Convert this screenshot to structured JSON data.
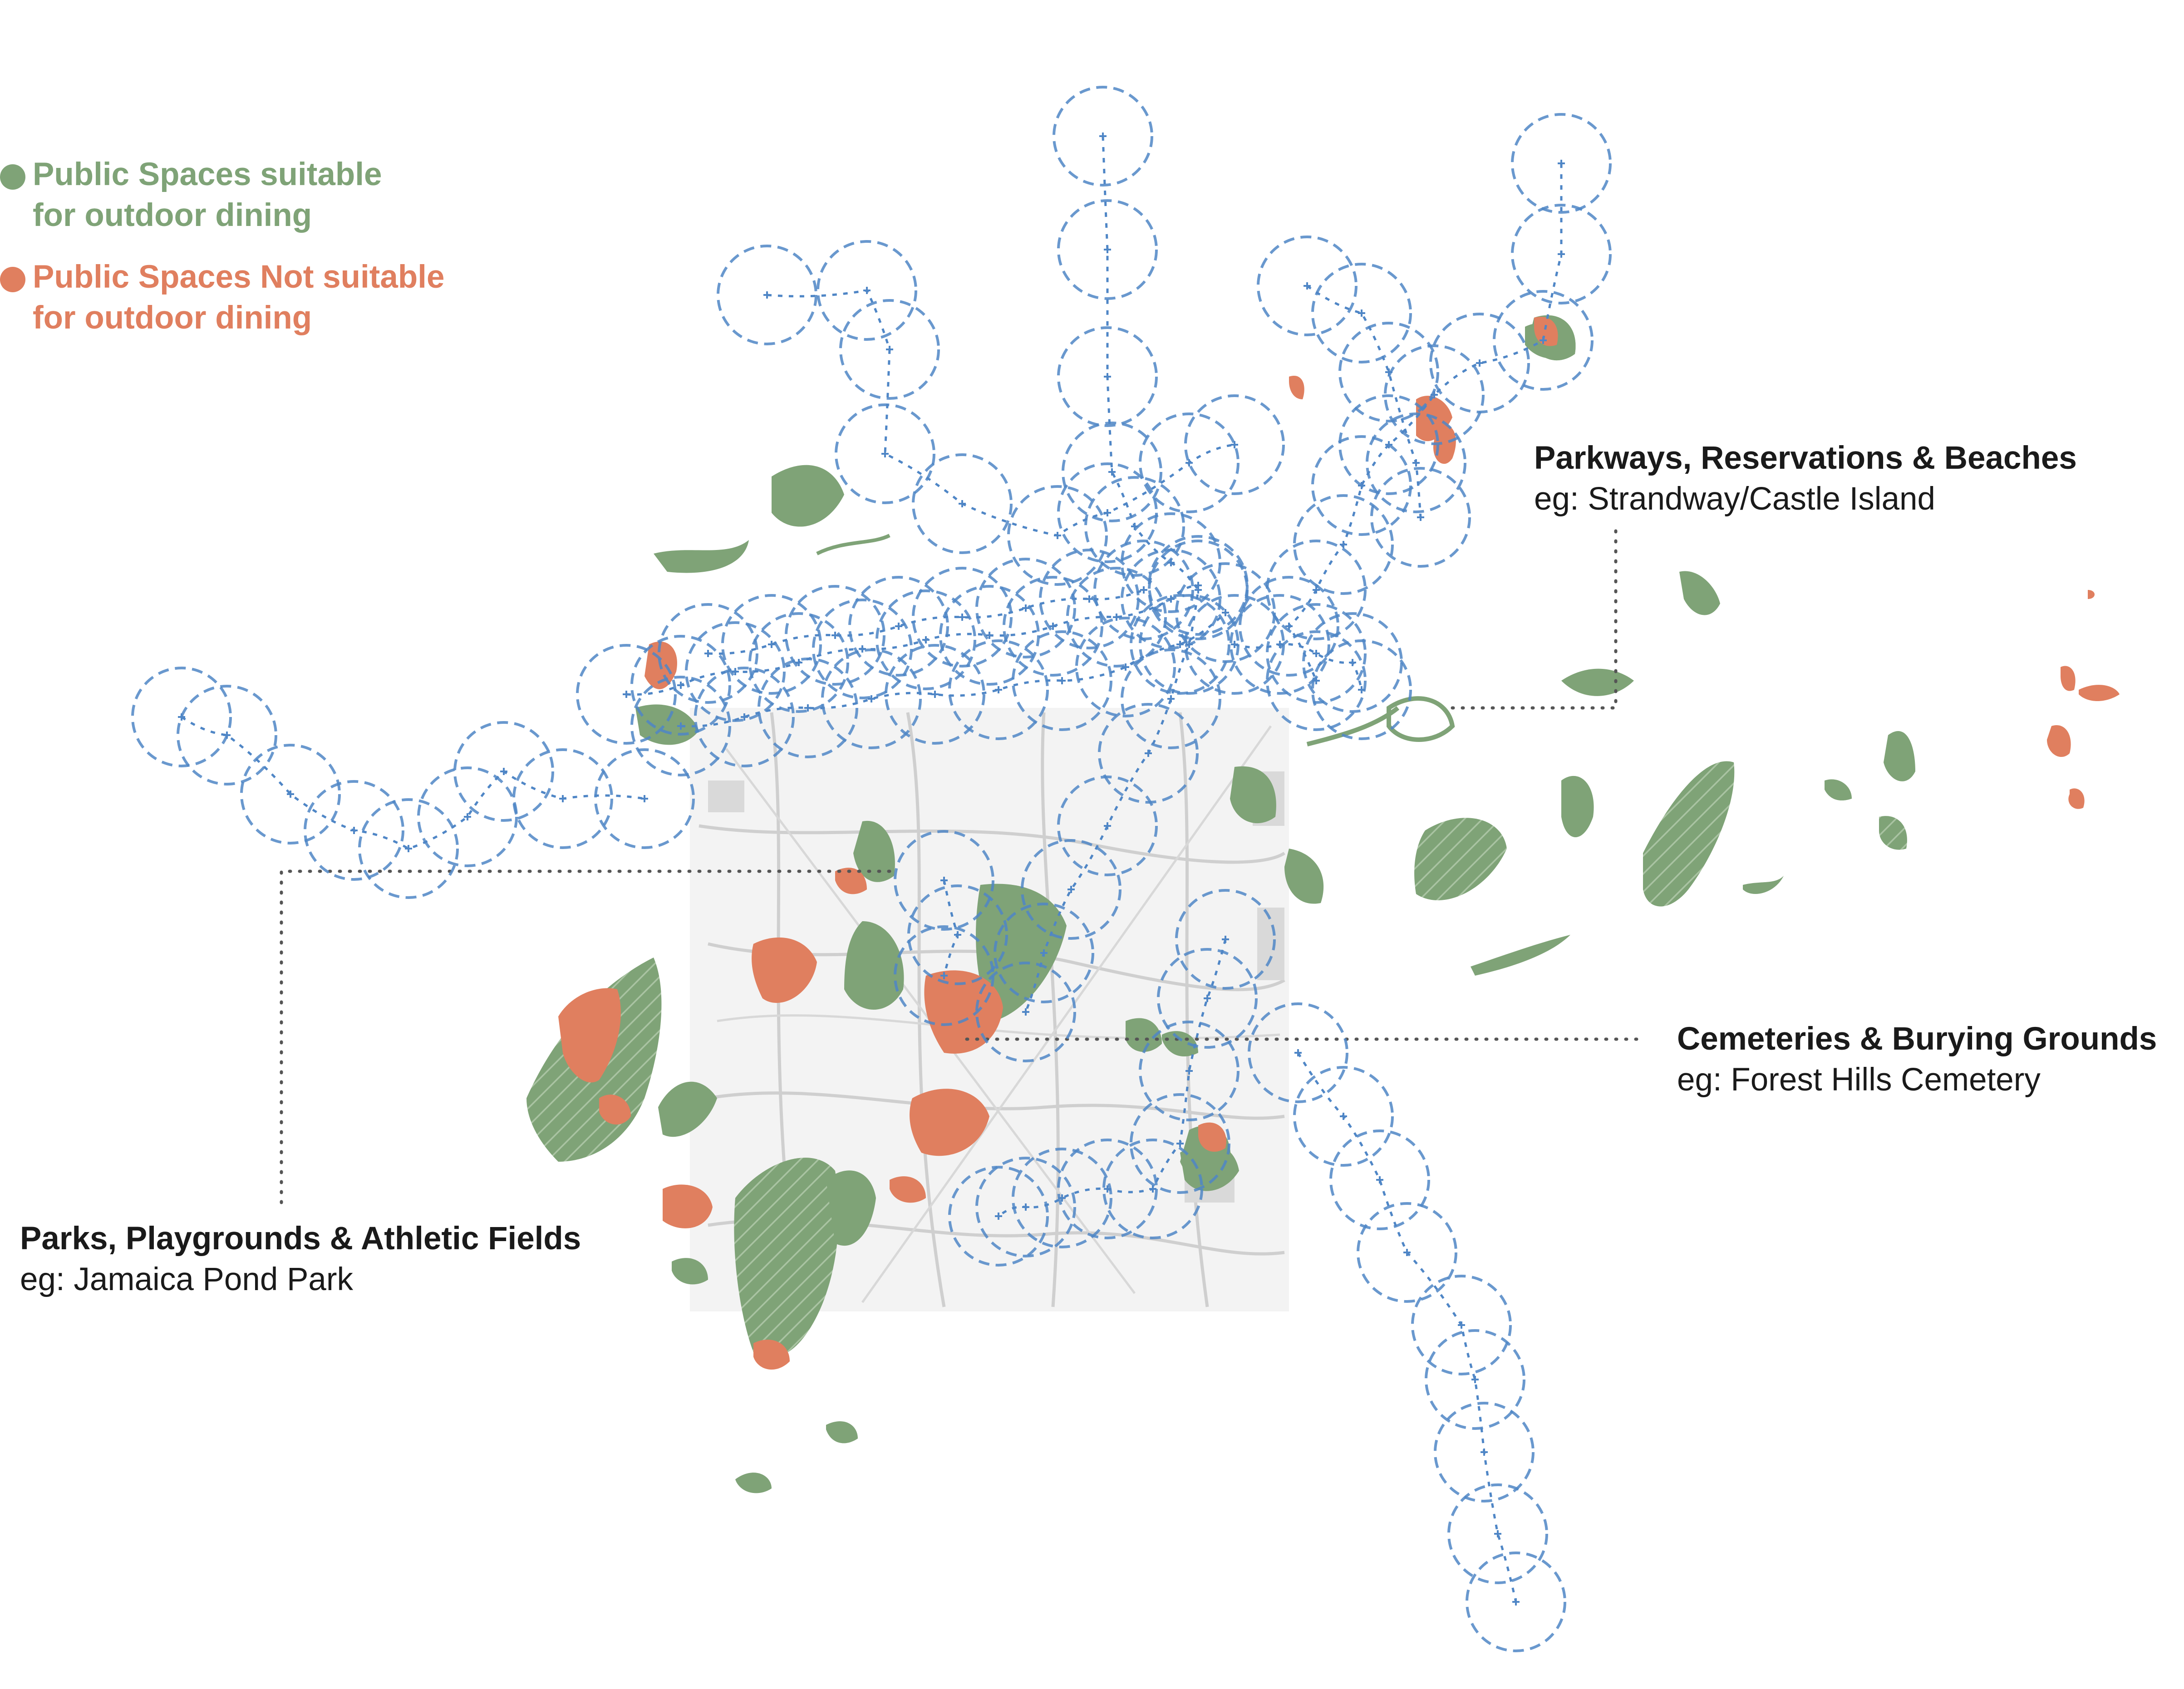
{
  "colors": {
    "suitable": "#7fa377",
    "not_suitable": "#e07f5f",
    "transit": "#4f86c6",
    "basemap": "#f2f2f2",
    "roads": "#c9c9c9",
    "leader": "#555555"
  },
  "legend": {
    "suitable": {
      "icon": "green-dot-icon",
      "line1": "Public Spaces suitable",
      "line2": "for outdoor dining"
    },
    "not_suitable": {
      "icon": "orange-dot-icon",
      "line1": "Public Spaces Not suitable",
      "line2": "for outdoor dining"
    }
  },
  "callouts": {
    "parkways": {
      "title": "Parkways, Reservations & Beaches",
      "example": "eg: Strandway/Castle Island"
    },
    "cemeteries": {
      "title": "Cemeteries & Burying Grounds",
      "example": "eg: Forest Hills Cemetery"
    },
    "parks": {
      "title": "Parks, Playgrounds & Athletic Fields",
      "example": "eg: Jamaica Pond Park"
    }
  }
}
